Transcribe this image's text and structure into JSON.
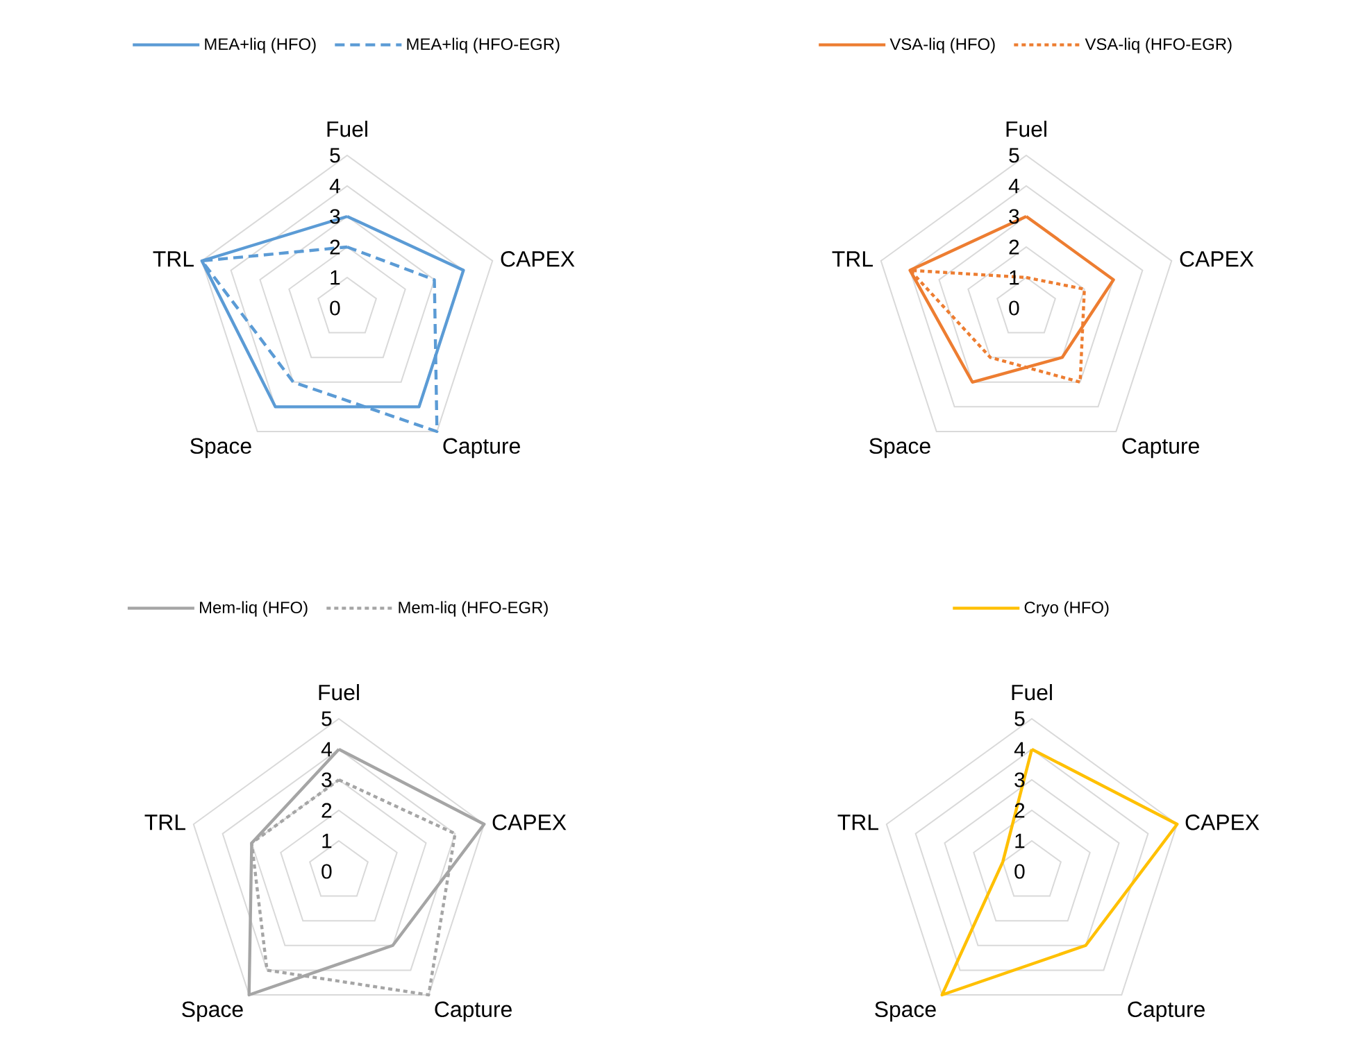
{
  "chart_data": [
    {
      "type": "radar",
      "categories": [
        "Fuel",
        "CAPEX",
        "Capture",
        "Space",
        "TRL"
      ],
      "ylim": [
        0,
        5
      ],
      "yticks": [
        0,
        1,
        2,
        3,
        4,
        5
      ],
      "grid": true,
      "legend": "top",
      "series": [
        {
          "name": "MEA+liq (HFO)",
          "color": "#5b9bd5",
          "line_style": "solid",
          "values": [
            3,
            4,
            4,
            4,
            5
          ]
        },
        {
          "name": "MEA+liq (HFO-EGR)",
          "color": "#5b9bd5",
          "line_style": "dashed",
          "values": [
            2,
            3,
            5,
            3,
            5
          ]
        }
      ]
    },
    {
      "type": "radar",
      "categories": [
        "Fuel",
        "CAPEX",
        "Capture",
        "Space",
        "TRL"
      ],
      "ylim": [
        0,
        5
      ],
      "yticks": [
        0,
        1,
        2,
        3,
        4,
        5
      ],
      "grid": true,
      "legend": "top",
      "series": [
        {
          "name": "VSA-liq (HFO)",
          "color": "#ed7d31",
          "line_style": "solid",
          "values": [
            3,
            3,
            2,
            3,
            4
          ]
        },
        {
          "name": "VSA-liq (HFO-EGR)",
          "color": "#ed7d31",
          "line_style": "dotted",
          "values": [
            1,
            2,
            3,
            2,
            4
          ]
        }
      ]
    },
    {
      "type": "radar",
      "categories": [
        "Fuel",
        "CAPEX",
        "Capture",
        "Space",
        "TRL"
      ],
      "ylim": [
        0,
        5
      ],
      "yticks": [
        0,
        1,
        2,
        3,
        4,
        5
      ],
      "grid": true,
      "legend": "top",
      "series": [
        {
          "name": "Mem-liq (HFO)",
          "color": "#a5a5a5",
          "line_style": "solid",
          "values": [
            4,
            5,
            3,
            5,
            3
          ]
        },
        {
          "name": "Mem-liq (HFO-EGR)",
          "color": "#a5a5a5",
          "line_style": "dotted",
          "values": [
            3,
            4,
            5,
            4,
            3
          ]
        }
      ]
    },
    {
      "type": "radar",
      "categories": [
        "Fuel",
        "CAPEX",
        "Capture",
        "Space",
        "TRL"
      ],
      "ylim": [
        0,
        5
      ],
      "yticks": [
        0,
        1,
        2,
        3,
        4,
        5
      ],
      "grid": true,
      "legend": "top",
      "series": [
        {
          "name": "Cryo (HFO)",
          "color": "#ffc000",
          "line_style": "solid",
          "values": [
            4,
            5,
            3,
            5,
            1
          ]
        }
      ]
    }
  ]
}
